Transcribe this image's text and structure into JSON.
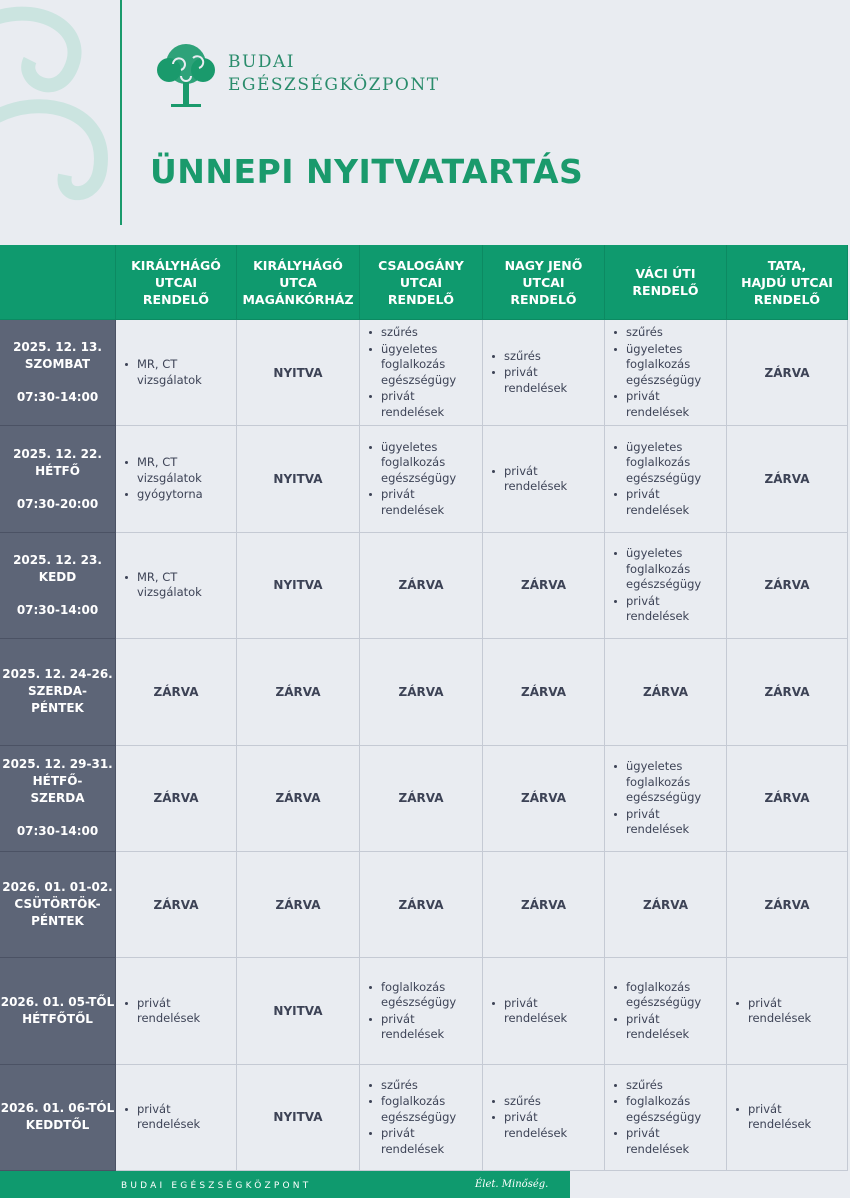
{
  "header": {
    "logo_line1": "BUDAI",
    "logo_line2": "EGÉSZSÉGKÖZPONT",
    "title": "ÜNNEPI NYITVATARTÁS"
  },
  "table": {
    "columns": [
      [
        "KIRÁLYHÁGÓ",
        "UTCAI",
        "RENDELŐ"
      ],
      [
        "KIRÁLYHÁGÓ",
        "UTCA",
        "MAGÁNKÓRHÁZ"
      ],
      [
        "CSALOGÁNY",
        "UTCAI",
        "RENDELŐ"
      ],
      [
        "NAGY JENŐ",
        "UTCAI",
        "RENDELŐ"
      ],
      [
        "VÁCI ÚTI",
        "RENDELŐ"
      ],
      [
        "TATA,",
        "HAJDÚ UTCAI",
        "RENDELŐ"
      ]
    ],
    "rows": [
      {
        "date": [
          "2025. 12. 13.",
          "SZOMBAT"
        ],
        "time": "07:30-14:00",
        "cells": [
          [
            [
              "MR, CT",
              "vizsgálatok"
            ]
          ],
          "NYITVA",
          [
            [
              "szűrés"
            ],
            [
              "ügyeletes",
              "foglalkozás",
              "egészségügy"
            ],
            [
              "privát",
              "rendelések"
            ]
          ],
          [
            [
              "szűrés"
            ],
            [
              "privát",
              "rendelések"
            ]
          ],
          [
            [
              "szűrés"
            ],
            [
              "ügyeletes",
              "foglalkozás",
              "egészségügy"
            ],
            [
              "privát",
              "rendelések"
            ]
          ],
          "ZÁRVA"
        ]
      },
      {
        "date": [
          "2025. 12. 22.",
          "HÉTFŐ"
        ],
        "time": "07:30-20:00",
        "cells": [
          [
            [
              "MR, CT",
              "vizsgálatok"
            ],
            [
              "gyógytorna"
            ]
          ],
          "NYITVA",
          [
            [
              "ügyeletes",
              "foglalkozás",
              "egészségügy"
            ],
            [
              "privát",
              "rendelések"
            ]
          ],
          [
            [
              "privát",
              "rendelések"
            ]
          ],
          [
            [
              "ügyeletes",
              "foglalkozás",
              "egészségügy"
            ],
            [
              "privát",
              "rendelések"
            ]
          ],
          "ZÁRVA"
        ]
      },
      {
        "date": [
          "2025. 12. 23.",
          "KEDD"
        ],
        "time": "07:30-14:00",
        "cells": [
          [
            [
              "MR, CT",
              "vizsgálatok"
            ]
          ],
          "NYITVA",
          "ZÁRVA",
          "ZÁRVA",
          [
            [
              "ügyeletes",
              "foglalkozás",
              "egészségügy"
            ],
            [
              "privát",
              "rendelések"
            ]
          ],
          "ZÁRVA"
        ]
      },
      {
        "date": [
          "2025. 12. 24-26.",
          "SZERDA-",
          "PÉNTEK"
        ],
        "cells": [
          "ZÁRVA",
          "ZÁRVA",
          "ZÁRVA",
          "ZÁRVA",
          "ZÁRVA",
          "ZÁRVA"
        ]
      },
      {
        "date": [
          "2025. 12. 29-31.",
          "HÉTFŐ-",
          "SZERDA"
        ],
        "time": "07:30-14:00",
        "cells": [
          "ZÁRVA",
          "ZÁRVA",
          "ZÁRVA",
          "ZÁRVA",
          [
            [
              "ügyeletes",
              "foglalkozás",
              "egészségügy"
            ],
            [
              "privát",
              "rendelések"
            ]
          ],
          "ZÁRVA"
        ]
      },
      {
        "date": [
          "2026. 01. 01-02.",
          "CSÜTÖRTÖK-",
          "PÉNTEK"
        ],
        "cells": [
          "ZÁRVA",
          "ZÁRVA",
          "ZÁRVA",
          "ZÁRVA",
          "ZÁRVA",
          "ZÁRVA"
        ]
      },
      {
        "date": [
          "2026. 01. 05-TŐL",
          "HÉTFŐTŐL"
        ],
        "cells": [
          [
            [
              "privát",
              "rendelések"
            ]
          ],
          "NYITVA",
          [
            [
              "foglalkozás",
              "egészségügy"
            ],
            [
              "privát",
              "rendelések"
            ]
          ],
          [
            [
              "privát",
              "rendelések"
            ]
          ],
          [
            [
              "foglalkozás",
              "egészségügy"
            ],
            [
              "privát",
              "rendelések"
            ]
          ],
          [
            [
              "privát",
              "rendelések"
            ]
          ]
        ]
      },
      {
        "date": [
          "2026. 01. 06-TÓL",
          "KEDDTŐL"
        ],
        "cells": [
          [
            [
              "privát",
              "rendelések"
            ]
          ],
          "NYITVA",
          [
            [
              "szűrés"
            ],
            [
              "foglalkozás",
              "egészségügy"
            ],
            [
              "privát",
              "rendelések"
            ]
          ],
          [
            [
              "szűrés"
            ],
            [
              "privát",
              "rendelések"
            ]
          ],
          [
            [
              "szűrés"
            ],
            [
              "foglalkozás",
              "egészségügy"
            ],
            [
              "privát",
              "rendelések"
            ]
          ],
          [
            [
              "privát",
              "rendelések"
            ]
          ]
        ]
      }
    ]
  },
  "footer": {
    "brand": "BUDAI EGÉSZSÉGKÖZPONT",
    "slogan": "Élet. Minőség."
  }
}
